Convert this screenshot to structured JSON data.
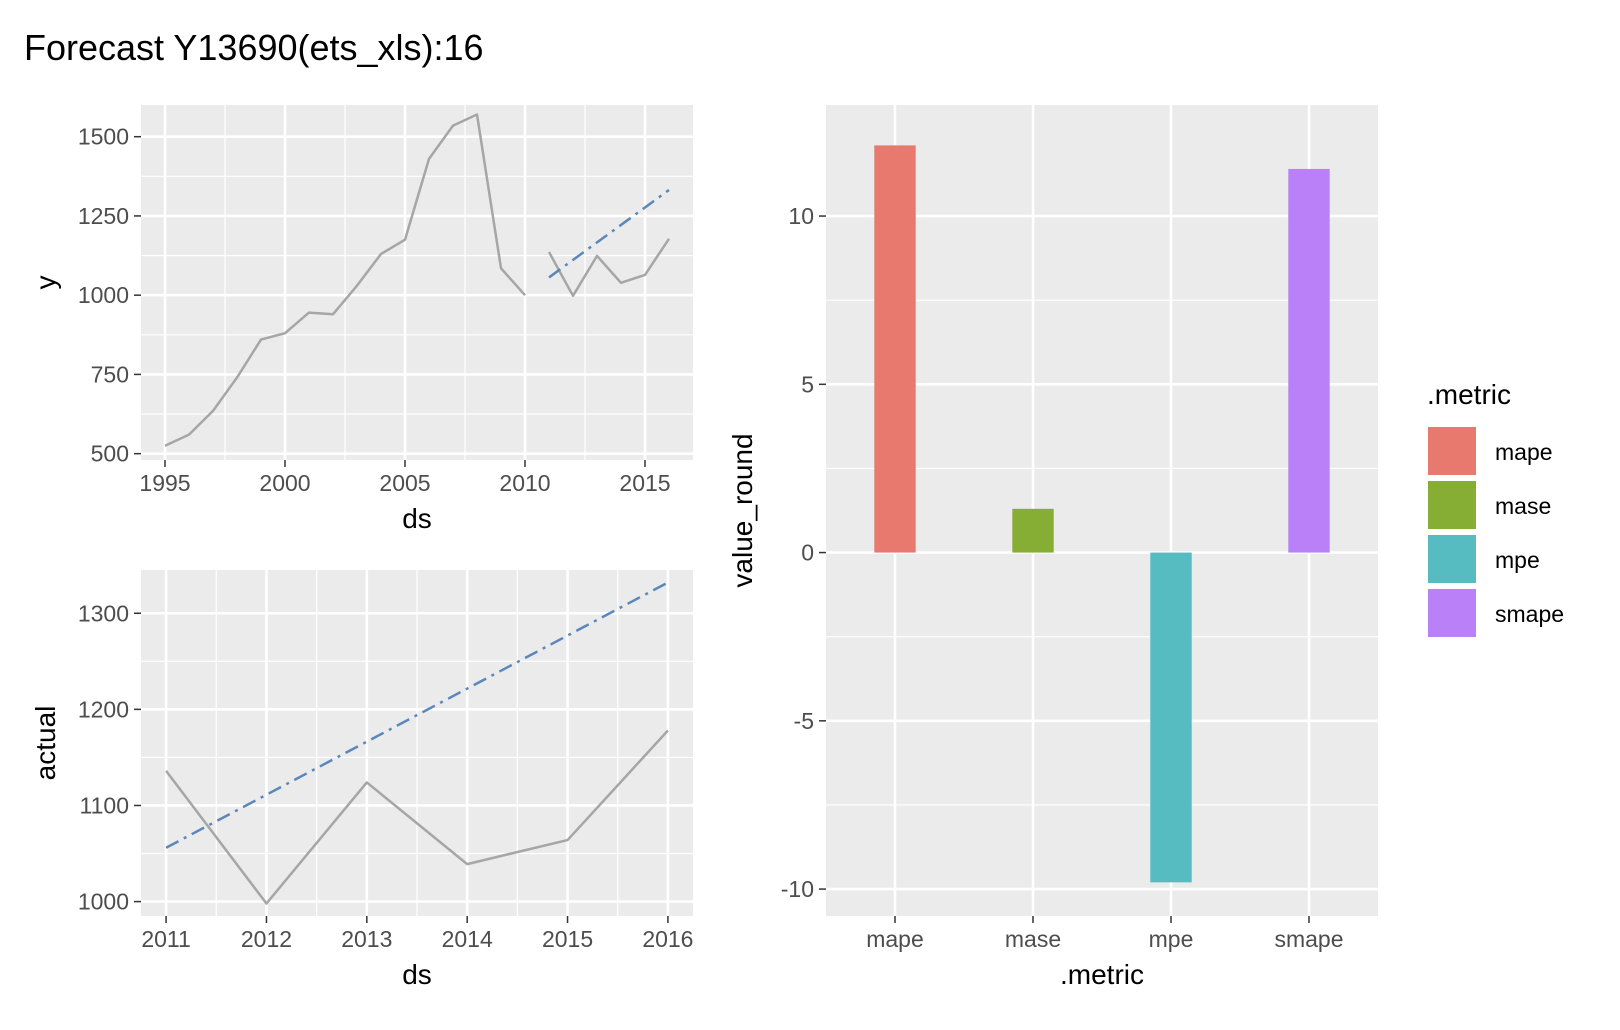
{
  "title": "Forecast Y13690(ets_xls):16",
  "colors": {
    "actual_line": "#a6a6a6",
    "forecast_line": "#5b87bd",
    "panel_bg": "#ebebeb",
    "grid": "#ffffff",
    "mape": "#e8796f",
    "mase": "#86ad34",
    "mpe": "#56bcc2",
    "smape": "#b980f7"
  },
  "chart_data": [
    {
      "type": "line",
      "xlabel": "ds",
      "ylabel": "y",
      "xlim": [
        1994,
        2017
      ],
      "ylim": [
        480,
        1600
      ],
      "x_ticks": [
        1995,
        2000,
        2005,
        2010,
        2015
      ],
      "y_ticks": [
        500,
        750,
        1000,
        1250,
        1500
      ],
      "x_tick_labels": [
        "1995",
        "2000",
        "2005",
        "2010",
        "2015"
      ],
      "y_tick_labels": [
        "500",
        "750",
        "1000",
        "1250",
        "1500"
      ],
      "grid": true,
      "series": [
        {
          "style": "solid",
          "x": [
            1995,
            1996,
            1997,
            1998,
            1999,
            2000,
            2001,
            2002,
            2003,
            2004,
            2005,
            2006,
            2007,
            2008,
            2009,
            2010
          ],
          "y": [
            525,
            560,
            635,
            740,
            860,
            880,
            945,
            940,
            1030,
            1130,
            1175,
            1430,
            1535,
            1570,
            1085,
            1000
          ]
        },
        {
          "style": "solid",
          "x": [
            2011,
            2012,
            2013,
            2014,
            2015,
            2016
          ],
          "y": [
            1136,
            998,
            1124,
            1039,
            1064,
            1178
          ]
        },
        {
          "style": "dashdot",
          "x": [
            2011,
            2016
          ],
          "y": [
            1056,
            1332
          ]
        }
      ]
    },
    {
      "type": "line",
      "xlabel": "ds",
      "ylabel": "actual",
      "xlim": [
        2010.75,
        2016.25
      ],
      "ylim": [
        985,
        1345
      ],
      "x_ticks": [
        2011,
        2012,
        2013,
        2014,
        2015,
        2016
      ],
      "y_ticks": [
        1000,
        1100,
        1200,
        1300
      ],
      "x_tick_labels": [
        "2011",
        "2012",
        "2013",
        "2014",
        "2015",
        "2016"
      ],
      "y_tick_labels": [
        "1000",
        "1100",
        "1200",
        "1300"
      ],
      "grid": true,
      "series": [
        {
          "style": "solid",
          "x": [
            2011,
            2012,
            2013,
            2014,
            2015,
            2016
          ],
          "y": [
            1136,
            998,
            1124,
            1039,
            1064,
            1178
          ]
        },
        {
          "style": "dashdot",
          "x": [
            2011,
            2016
          ],
          "y": [
            1056,
            1332
          ]
        }
      ]
    },
    {
      "type": "bar",
      "xlabel": ".metric",
      "ylabel": "value_round",
      "categories": [
        "mape",
        "mase",
        "mpe",
        "smape"
      ],
      "values": [
        12.1,
        1.3,
        -9.8,
        11.4
      ],
      "ylim": [
        -10.8,
        13.3
      ],
      "y_ticks": [
        -10,
        -5,
        0,
        5,
        10
      ],
      "y_tick_labels": [
        "-10",
        "-5",
        "0",
        "5",
        "10"
      ],
      "grid": true,
      "legend": {
        "title": ".metric",
        "position": "right",
        "entries": [
          "mape",
          "mase",
          "mpe",
          "smape"
        ]
      }
    }
  ]
}
